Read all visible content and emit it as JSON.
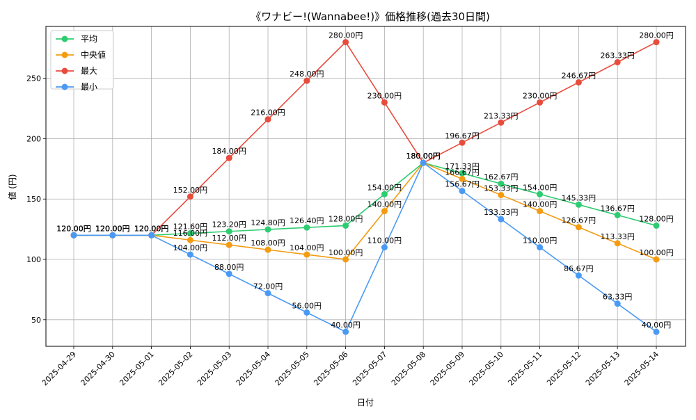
{
  "chart_data": {
    "type": "line",
    "title": "《ワナビー!(Wannabee!)》価格推移(過去30日間)",
    "xlabel": "日付",
    "ylabel": "値 (円)",
    "categories": [
      "2025-04-29",
      "2025-04-30",
      "2025-05-01",
      "2025-05-02",
      "2025-05-03",
      "2025-05-04",
      "2025-05-05",
      "2025-05-06",
      "2025-05-07",
      "2025-05-08",
      "2025-05-09",
      "2025-05-10",
      "2025-05-11",
      "2025-05-12",
      "2025-05-13",
      "2025-05-14"
    ],
    "ylim": [
      28,
      293
    ],
    "yticks": [
      50,
      100,
      150,
      200,
      250
    ],
    "grid": true,
    "legend_position": "top-left",
    "unit_suffix": "円",
    "series": [
      {
        "name": "平均",
        "color": "#2ecc71",
        "values": [
          120.0,
          120.0,
          120.0,
          121.6,
          123.2,
          124.8,
          126.4,
          128.0,
          154.0,
          180.0,
          171.33,
          162.67,
          154.0,
          145.33,
          136.67,
          128.0
        ]
      },
      {
        "name": "中央値",
        "color": "#f39c12",
        "values": [
          120.0,
          120.0,
          120.0,
          116.0,
          112.0,
          108.0,
          104.0,
          100.0,
          140.0,
          180.0,
          166.67,
          153.33,
          140.0,
          126.67,
          113.33,
          100.0
        ]
      },
      {
        "name": "最大",
        "color": "#e74c3c",
        "values": [
          120.0,
          120.0,
          120.0,
          152.0,
          184.0,
          216.0,
          248.0,
          280.0,
          230.0,
          180.0,
          196.67,
          213.33,
          230.0,
          246.67,
          263.33,
          280.0
        ]
      },
      {
        "name": "最小",
        "color": "#4a9af5",
        "values": [
          120.0,
          120.0,
          120.0,
          104.0,
          88.0,
          72.0,
          56.0,
          40.0,
          110.0,
          180.0,
          156.67,
          133.33,
          110.0,
          86.67,
          63.33,
          40.0
        ]
      }
    ]
  }
}
